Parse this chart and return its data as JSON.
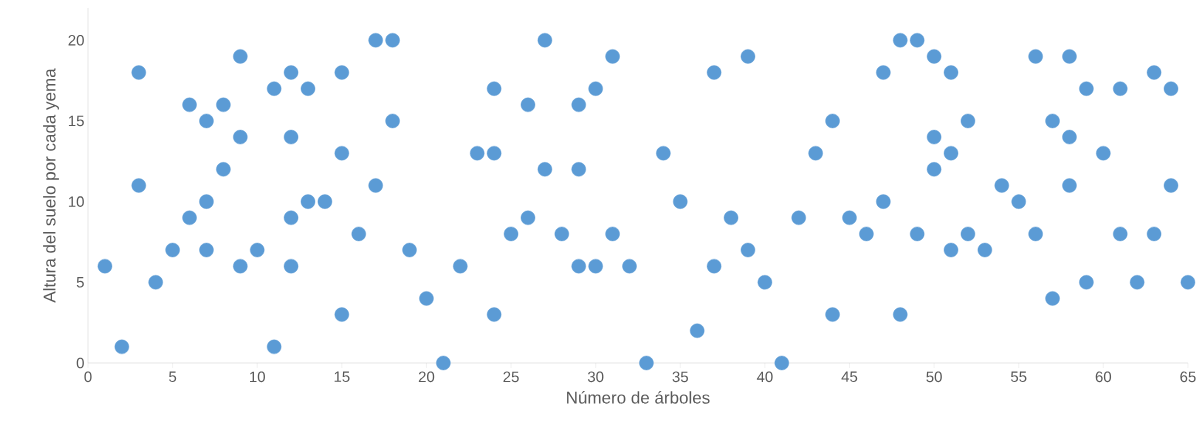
{
  "chart_data": {
    "type": "scatter",
    "xlabel": "Número de árboles",
    "ylabel": "Altura  del suelo por cada yema",
    "x": [
      1,
      2,
      3,
      3,
      4,
      5,
      6,
      6,
      7,
      7,
      7,
      8,
      8,
      9,
      9,
      9,
      10,
      11,
      11,
      12,
      12,
      12,
      12,
      13,
      13,
      14,
      15,
      15,
      15,
      16,
      17,
      17,
      18,
      18,
      19,
      20,
      21,
      22,
      23,
      24,
      24,
      24,
      25,
      26,
      26,
      27,
      27,
      28,
      29,
      29,
      29,
      30,
      30,
      31,
      31,
      32,
      33,
      34,
      35,
      36,
      37,
      37,
      38,
      39,
      39,
      40,
      41,
      42,
      43,
      44,
      44,
      45,
      46,
      47,
      47,
      48,
      48,
      49,
      49,
      50,
      50,
      50,
      51,
      51,
      51,
      52,
      52,
      53,
      54,
      55,
      56,
      56,
      57,
      57,
      58,
      58,
      58,
      59,
      59,
      60,
      61,
      61,
      62,
      63,
      63,
      64,
      64,
      65
    ],
    "series": [
      {
        "color": "#5b9bd5",
        "values": [
          6,
          1,
          18,
          11,
          5,
          7,
          16,
          9,
          15,
          10,
          7,
          16,
          12,
          19,
          14,
          6,
          7,
          17,
          1,
          18,
          14,
          9,
          6,
          17,
          10,
          10,
          18,
          13,
          3,
          8,
          20,
          11,
          20,
          15,
          7,
          4,
          0,
          6,
          13,
          17,
          13,
          3,
          8,
          16,
          9,
          20,
          12,
          8,
          16,
          12,
          6,
          17,
          6,
          19,
          8,
          6,
          0,
          13,
          10,
          2,
          18,
          6,
          9,
          19,
          7,
          5,
          0,
          9,
          13,
          15,
          3,
          9,
          8,
          18,
          10,
          20,
          3,
          20,
          8,
          19,
          14,
          12,
          18,
          13,
          7,
          15,
          8,
          7,
          11,
          10,
          19,
          8,
          15,
          4,
          19,
          14,
          11,
          17,
          5,
          13,
          17,
          8,
          5,
          18,
          8,
          17,
          11,
          5
        ]
      }
    ],
    "xlim": [
      0,
      65
    ],
    "ylim": [
      0,
      22
    ],
    "xticks": [
      0,
      5,
      10,
      15,
      20,
      25,
      30,
      35,
      40,
      45,
      50,
      55,
      60,
      65
    ],
    "yticks": [
      0,
      5,
      10,
      15,
      20
    ],
    "marker": "circle"
  }
}
